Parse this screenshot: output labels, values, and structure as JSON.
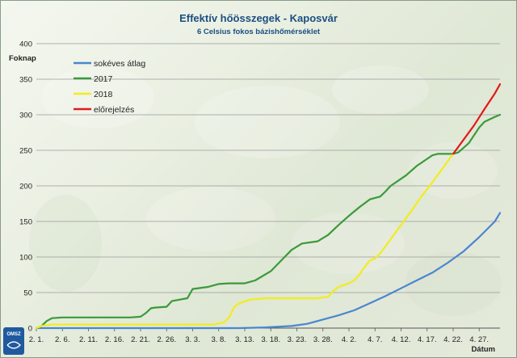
{
  "chart_data": {
    "type": "line",
    "title": "Effektív hőösszegek - Kaposvár",
    "subtitle": "6 Celsius fokos bázishőmérséklet",
    "ylabel": "Foknap",
    "xlabel": "Dátum",
    "ylim": [
      0,
      400
    ],
    "yticks": [
      0,
      50,
      100,
      150,
      200,
      250,
      300,
      350,
      400
    ],
    "xlim": [
      1,
      88
    ],
    "xticks": [
      {
        "x": 1,
        "label": "2. 1."
      },
      {
        "x": 6,
        "label": "2. 6."
      },
      {
        "x": 11,
        "label": "2. 11."
      },
      {
        "x": 16,
        "label": "2. 16."
      },
      {
        "x": 21,
        "label": "2. 21."
      },
      {
        "x": 26,
        "label": "2. 26."
      },
      {
        "x": 31,
        "label": "3. 3."
      },
      {
        "x": 36,
        "label": "3. 8."
      },
      {
        "x": 41,
        "label": "3. 13."
      },
      {
        "x": 46,
        "label": "3. 18."
      },
      {
        "x": 51,
        "label": "3. 23."
      },
      {
        "x": 56,
        "label": "3. 28."
      },
      {
        "x": 61,
        "label": "4. 2."
      },
      {
        "x": 66,
        "label": "4. 7."
      },
      {
        "x": 71,
        "label": "4. 12."
      },
      {
        "x": 76,
        "label": "4. 17."
      },
      {
        "x": 81,
        "label": "4. 22."
      },
      {
        "x": 86,
        "label": "4. 27."
      }
    ],
    "grid": true,
    "legend_position": "top-left",
    "series": [
      {
        "name": "sokéves átlag",
        "color": "#4a86d0",
        "points": [
          [
            1,
            0
          ],
          [
            40,
            0
          ],
          [
            45,
            1
          ],
          [
            50,
            3
          ],
          [
            53,
            6
          ],
          [
            56,
            12
          ],
          [
            59,
            18
          ],
          [
            62,
            25
          ],
          [
            65,
            35
          ],
          [
            68,
            45
          ],
          [
            71,
            56
          ],
          [
            74,
            67
          ],
          [
            77,
            78
          ],
          [
            80,
            92
          ],
          [
            83,
            108
          ],
          [
            86,
            128
          ],
          [
            89,
            150
          ],
          [
            90,
            162
          ]
        ]
      },
      {
        "name": "2017",
        "color": "#3a9a3a",
        "points": [
          [
            1,
            0
          ],
          [
            2,
            3
          ],
          [
            3,
            10
          ],
          [
            4,
            14
          ],
          [
            6,
            15
          ],
          [
            10,
            15
          ],
          [
            15,
            15
          ],
          [
            19,
            15
          ],
          [
            21,
            16
          ],
          [
            22,
            21
          ],
          [
            23,
            28
          ],
          [
            24,
            29
          ],
          [
            26,
            30
          ],
          [
            27,
            38
          ],
          [
            30,
            42
          ],
          [
            31,
            55
          ],
          [
            34,
            58
          ],
          [
            36,
            62
          ],
          [
            38,
            63
          ],
          [
            41,
            63
          ],
          [
            43,
            67
          ],
          [
            46,
            80
          ],
          [
            48,
            95
          ],
          [
            50,
            110
          ],
          [
            52,
            119
          ],
          [
            54,
            121
          ],
          [
            55,
            122
          ],
          [
            57,
            131
          ],
          [
            59,
            145
          ],
          [
            61,
            158
          ],
          [
            63,
            170
          ],
          [
            65,
            181
          ],
          [
            67,
            185
          ],
          [
            68,
            192
          ],
          [
            69,
            200
          ],
          [
            71,
            210
          ],
          [
            72,
            215
          ],
          [
            74,
            228
          ],
          [
            76,
            238
          ],
          [
            77,
            243
          ],
          [
            78,
            245
          ],
          [
            81,
            245
          ],
          [
            82,
            247
          ],
          [
            84,
            260
          ],
          [
            86,
            282
          ],
          [
            87,
            290
          ],
          [
            89,
            297
          ],
          [
            90,
            300
          ]
        ]
      },
      {
        "name": "2018",
        "color": "#f2ec1e",
        "points": [
          [
            1,
            0
          ],
          [
            2,
            3
          ],
          [
            4,
            5
          ],
          [
            8,
            5
          ],
          [
            20,
            5
          ],
          [
            35,
            5
          ],
          [
            37,
            8
          ],
          [
            38,
            15
          ],
          [
            39,
            30
          ],
          [
            40,
            35
          ],
          [
            42,
            40
          ],
          [
            45,
            42
          ],
          [
            50,
            42
          ],
          [
            55,
            42
          ],
          [
            57,
            44
          ],
          [
            58,
            52
          ],
          [
            59,
            58
          ],
          [
            61,
            63
          ],
          [
            62,
            67
          ],
          [
            63,
            75
          ],
          [
            64,
            86
          ],
          [
            65,
            95
          ],
          [
            66,
            98
          ],
          [
            67,
            105
          ],
          [
            69,
            125
          ],
          [
            71,
            145
          ],
          [
            73,
            165
          ],
          [
            75,
            186
          ],
          [
            77,
            205
          ],
          [
            79,
            225
          ],
          [
            81,
            245
          ]
        ]
      },
      {
        "name": "előrejelzés",
        "color": "#e11b1b",
        "points": [
          [
            81,
            245
          ],
          [
            83,
            265
          ],
          [
            85,
            285
          ],
          [
            87,
            308
          ],
          [
            89,
            330
          ],
          [
            90,
            343
          ]
        ]
      }
    ]
  },
  "logo": {
    "text": "OMSZ"
  }
}
